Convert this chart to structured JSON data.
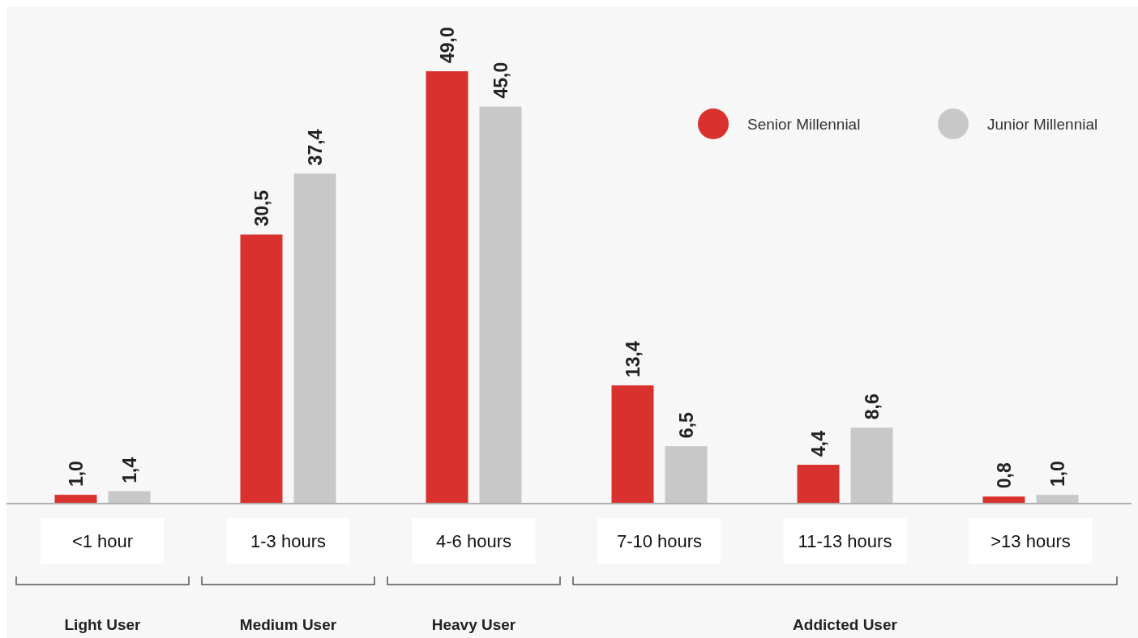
{
  "chart_data": {
    "type": "bar",
    "relative": false,
    "categories": [
      "<1 hour",
      "1-3 hours",
      "4-6 hours",
      "7-10 hours",
      "11-13 hours",
      ">13 hours"
    ],
    "series": [
      {
        "name": "Senior Millennial",
        "color": "#d9322e",
        "values": [
          1.0,
          30.5,
          49.0,
          13.4,
          4.4,
          0.8
        ],
        "value_labels": [
          "1,0",
          "30,5",
          "49,0",
          "13,4",
          "4,4",
          "0,8"
        ]
      },
      {
        "name": "Junior Millennial",
        "color": "#c8c8c8",
        "values": [
          1.4,
          37.4,
          45.0,
          6.5,
          8.6,
          1.0
        ],
        "value_labels": [
          "1,4",
          "37,4",
          "45,0",
          "6,5",
          "8,6",
          "1,0"
        ]
      }
    ],
    "annotations": [
      "Light User",
      "Medium User",
      "Heavy User",
      "Addicted User"
    ],
    "legend": "top right"
  }
}
